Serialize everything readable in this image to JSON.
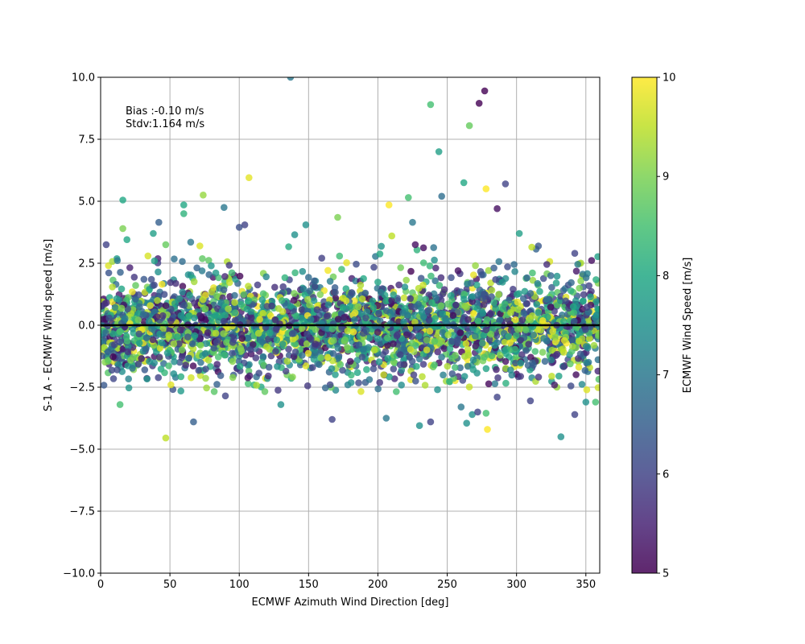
{
  "chart_data": {
    "type": "scatter",
    "xlabel": "ECMWF Azimuth Wind Direction [deg]",
    "ylabel": "S-1 A - ECMWF Wind speed [m/s]",
    "xlim": [
      0,
      360
    ],
    "ylim": [
      -10,
      10
    ],
    "xticks": [
      "0",
      "50",
      "100",
      "150",
      "200",
      "250",
      "300",
      "350"
    ],
    "yticks": [
      "−10.0",
      "−7.5",
      "−5.0",
      "−2.5",
      "0.0",
      "2.5",
      "5.0",
      "7.5",
      "10.0"
    ],
    "grid": true,
    "annotations": [
      "Bias :-0.10 m/s",
      "Stdv:1.164 m/s"
    ],
    "reference_line_y": 0,
    "colorbar": {
      "label": "ECMWF Wind Speed [m/s]",
      "range": [
        5,
        10
      ],
      "ticks": [
        "5",
        "6",
        "7",
        "8",
        "9",
        "10"
      ],
      "colormap": "viridis"
    },
    "marker_alpha": 0.8,
    "notable_points": [
      {
        "x": 137,
        "y": 10.0,
        "c": 7.0
      },
      {
        "x": 277,
        "y": 9.45,
        "c": 5.0
      },
      {
        "x": 273,
        "y": 8.95,
        "c": 5.0
      },
      {
        "x": 238,
        "y": 8.9,
        "c": 8.5
      },
      {
        "x": 266,
        "y": 8.05,
        "c": 8.8
      },
      {
        "x": 244,
        "y": 7.0,
        "c": 7.8
      },
      {
        "x": 107,
        "y": 5.95,
        "c": 9.8
      },
      {
        "x": 292,
        "y": 5.7,
        "c": 6.0
      },
      {
        "x": 262,
        "y": 5.75,
        "c": 8.0
      },
      {
        "x": 278,
        "y": 5.5,
        "c": 10.0
      },
      {
        "x": 74,
        "y": 5.25,
        "c": 9.2
      },
      {
        "x": 246,
        "y": 5.2,
        "c": 6.8
      },
      {
        "x": 222,
        "y": 5.15,
        "c": 8.5
      },
      {
        "x": 16,
        "y": 5.05,
        "c": 8.0
      },
      {
        "x": 208,
        "y": 4.85,
        "c": 10.0
      },
      {
        "x": 60,
        "y": 4.85,
        "c": 8.0
      },
      {
        "x": 89,
        "y": 4.75,
        "c": 7.0
      },
      {
        "x": 286,
        "y": 4.7,
        "c": 5.2
      },
      {
        "x": 60,
        "y": 4.5,
        "c": 8.2
      },
      {
        "x": 171,
        "y": 4.35,
        "c": 9.0
      },
      {
        "x": 42,
        "y": 4.15,
        "c": 6.5
      },
      {
        "x": 225,
        "y": 4.15,
        "c": 7.0
      },
      {
        "x": 148,
        "y": 4.05,
        "c": 7.5
      },
      {
        "x": 104,
        "y": 4.05,
        "c": 6.0
      },
      {
        "x": 100,
        "y": 3.95,
        "c": 6.2
      },
      {
        "x": 16,
        "y": 3.9,
        "c": 9.0
      },
      {
        "x": 19,
        "y": 3.45,
        "c": 8.0
      },
      {
        "x": 38,
        "y": 3.7,
        "c": 7.8
      },
      {
        "x": 140,
        "y": 3.65,
        "c": 7.5
      },
      {
        "x": 302,
        "y": 3.7,
        "c": 7.8
      },
      {
        "x": 4,
        "y": 3.25,
        "c": 6.0
      },
      {
        "x": 47,
        "y": 3.25,
        "c": 8.8
      },
      {
        "x": 65,
        "y": 3.35,
        "c": 7.0
      },
      {
        "x": 210,
        "y": 3.6,
        "c": 9.5
      },
      {
        "x": 227,
        "y": 3.25,
        "c": 5.2
      },
      {
        "x": 311,
        "y": 3.15,
        "c": 9.5
      },
      {
        "x": 342,
        "y": 2.9,
        "c": 6.0
      },
      {
        "x": 47,
        "y": -4.55,
        "c": 9.5
      },
      {
        "x": 67,
        "y": -3.9,
        "c": 6.5
      },
      {
        "x": 167,
        "y": -3.8,
        "c": 6.0
      },
      {
        "x": 206,
        "y": -3.75,
        "c": 7.0
      },
      {
        "x": 230,
        "y": -4.05,
        "c": 7.5
      },
      {
        "x": 238,
        "y": -3.9,
        "c": 6.0
      },
      {
        "x": 264,
        "y": -3.95,
        "c": 7.5
      },
      {
        "x": 278,
        "y": -3.55,
        "c": 8.5
      },
      {
        "x": 279,
        "y": -4.2,
        "c": 10.0
      },
      {
        "x": 332,
        "y": -4.5,
        "c": 7.5
      },
      {
        "x": 342,
        "y": -3.6,
        "c": 6.0
      },
      {
        "x": 130,
        "y": -3.2,
        "c": 7.5
      },
      {
        "x": 90,
        "y": -2.85,
        "c": 6.0
      },
      {
        "x": 14,
        "y": -3.2,
        "c": 8.5
      },
      {
        "x": 350,
        "y": -3.1,
        "c": 7.5
      },
      {
        "x": 357,
        "y": -3.1,
        "c": 8.5
      },
      {
        "x": 260,
        "y": -3.3,
        "c": 7.0
      },
      {
        "x": 310,
        "y": -3.05,
        "c": 6.0
      },
      {
        "x": 243,
        "y": -2.6,
        "c": 7.5
      },
      {
        "x": 286,
        "y": -2.9,
        "c": 6.0
      },
      {
        "x": 268,
        "y": -3.6,
        "c": 7.5
      },
      {
        "x": 272,
        "y": -3.5,
        "c": 6.0
      }
    ],
    "bulk_distribution": {
      "description_counts": "dense band across all directions",
      "n_points": 3200,
      "x_range": [
        0,
        360
      ],
      "y_core_sd": 0.85,
      "y_tail_sd": 1.6,
      "c_range": [
        5,
        10
      ]
    }
  }
}
